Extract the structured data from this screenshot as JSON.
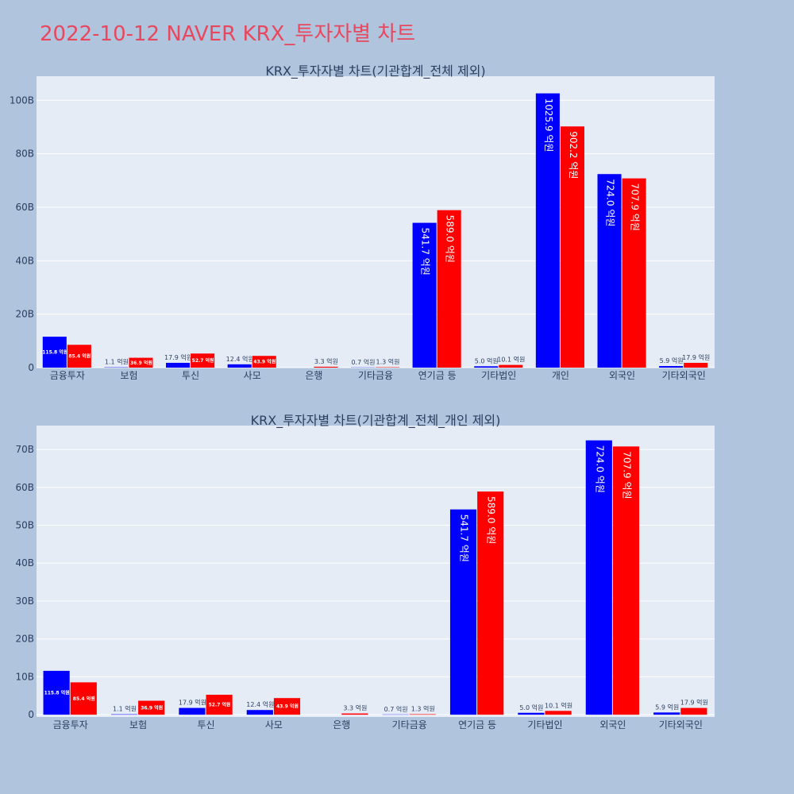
{
  "page_title": "2022-10-12 NAVER KRX_투자자별 차트",
  "colors": {
    "sell": "#0000ff",
    "buy": "#ff0000",
    "plot_bg": "#e5ecf6",
    "page_bg": "#b0c4de",
    "grid": "#ffffff",
    "text": "#2a3f5f"
  },
  "chart_data": [
    {
      "type": "bar",
      "title": "KRX_투자자별 차트(기관합계_전체 제외)",
      "categories": [
        "금융투자",
        "보험",
        "투신",
        "사모",
        "은행",
        "기타금융",
        "연기금 등",
        "기타법인",
        "개인",
        "외국인",
        "기타외국인"
      ],
      "series": [
        {
          "color": "#0000ff",
          "values": [
            11.58,
            0.11,
            1.79,
            1.24,
            0,
            0.07,
            54.17,
            0.5,
            102.59,
            72.4,
            0.59
          ],
          "labels": [
            "115.8 억원",
            "1.1 억원",
            "17.9 억원",
            "12.4 억원",
            "",
            "0.7 억원",
            "541.7 억원",
            "5.0 억원",
            "1025.9 억원",
            "724.0 억원",
            "5.9 억원"
          ]
        },
        {
          "color": "#ff0000",
          "values": [
            8.54,
            3.69,
            5.27,
            4.39,
            0.33,
            0.13,
            58.9,
            1.01,
            90.22,
            70.79,
            1.79
          ],
          "labels": [
            "85.4 억원",
            "36.9 억원",
            "52.7 억원",
            "43.9 억원",
            "3.3 억원",
            "1.3 억원",
            "589.0 억원",
            "10.1 억원",
            "902.2 억원",
            "707.9 억원",
            "17.9 억원"
          ]
        }
      ],
      "ylim": [
        0,
        109
      ],
      "yticks": [
        0,
        20,
        40,
        60,
        80,
        100
      ],
      "ytick_labels": [
        "0",
        "20B",
        "40B",
        "60B",
        "80B",
        "100B"
      ],
      "grid": true,
      "legend": "none"
    },
    {
      "type": "bar",
      "title": "KRX_투자자별 차트(기관합계_전체_개인 제외)",
      "categories": [
        "금융투자",
        "보험",
        "투신",
        "사모",
        "은행",
        "기타금융",
        "연기금 등",
        "기타법인",
        "외국인",
        "기타외국인"
      ],
      "series": [
        {
          "color": "#0000ff",
          "values": [
            11.58,
            0.11,
            1.79,
            1.24,
            0,
            0.07,
            54.17,
            0.5,
            72.4,
            0.59
          ],
          "labels": [
            "115.8 억원",
            "1.1 억원",
            "17.9 억원",
            "12.4 억원",
            "",
            "0.7 억원",
            "541.7 억원",
            "5.0 억원",
            "724.0 억원",
            "5.9 억원"
          ]
        },
        {
          "color": "#ff0000",
          "values": [
            8.54,
            3.69,
            5.27,
            4.39,
            0.33,
            0.13,
            58.9,
            1.01,
            70.79,
            1.79
          ],
          "labels": [
            "85.4 억원",
            "36.9 억원",
            "52.7 억원",
            "43.9 억원",
            "3.3 억원",
            "1.3 억원",
            "589.0 억원",
            "10.1 억원",
            "707.9 억원",
            "17.9 억원"
          ]
        }
      ],
      "ylim": [
        -0.6,
        76.3
      ],
      "yticks": [
        0,
        10,
        20,
        30,
        40,
        50,
        60,
        70
      ],
      "ytick_labels": [
        "0",
        "10B",
        "20B",
        "30B",
        "40B",
        "50B",
        "60B",
        "70B"
      ],
      "grid": true,
      "legend": "none"
    }
  ]
}
